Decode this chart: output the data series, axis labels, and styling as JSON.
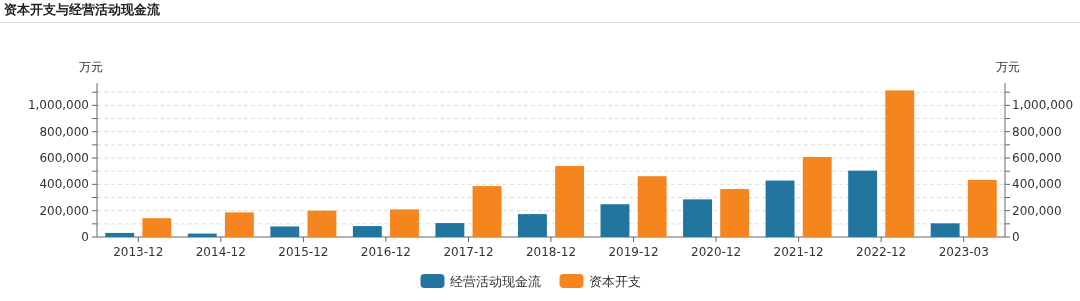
{
  "chart_data": {
    "type": "bar",
    "title": "资本开支与经营活动现金流",
    "ylabel": "万元",
    "y2label": "万元",
    "categories": [
      "2013-12",
      "2014-12",
      "2015-12",
      "2016-12",
      "2017-12",
      "2018-12",
      "2019-12",
      "2020-12",
      "2021-12",
      "2022-12",
      "2023-03"
    ],
    "series": [
      {
        "name": "经营活动现金流",
        "color": "#21759f",
        "values": [
          31000,
          26000,
          80000,
          83000,
          106000,
          174000,
          249000,
          286000,
          429000,
          504000,
          104000
        ]
      },
      {
        "name": "资本开支",
        "color": "#f5861f",
        "values": [
          143000,
          187000,
          200000,
          210000,
          387000,
          540000,
          462000,
          364000,
          608000,
          1114000,
          434000
        ]
      }
    ],
    "ylim": [
      0,
      1170000
    ],
    "yticks": [
      {
        "value": 0,
        "label": "0"
      },
      {
        "value": 100000,
        "label": null
      },
      {
        "value": 200000,
        "label": "200,000"
      },
      {
        "value": 300000,
        "label": null
      },
      {
        "value": 400000,
        "label": "400,000"
      },
      {
        "value": 500000,
        "label": null
      },
      {
        "value": 600000,
        "label": "600,000"
      },
      {
        "value": 700000,
        "label": null
      },
      {
        "value": 800000,
        "label": "800,000"
      },
      {
        "value": 900000,
        "label": null
      },
      {
        "value": 1000000,
        "label": "1,000,000"
      },
      {
        "value": 1100000,
        "label": null
      }
    ],
    "y2lim": [
      0,
      1170000
    ],
    "y2ticks": [
      {
        "value": 0,
        "label": "0"
      },
      {
        "value": 100000,
        "label": null
      },
      {
        "value": 200000,
        "label": "200,000"
      },
      {
        "value": 300000,
        "label": null
      },
      {
        "value": 400000,
        "label": "400,000"
      },
      {
        "value": 500000,
        "label": null
      },
      {
        "value": 600000,
        "label": "600,000"
      },
      {
        "value": 700000,
        "label": null
      },
      {
        "value": 800000,
        "label": "800,000"
      },
      {
        "value": 900000,
        "label": null
      },
      {
        "value": 1000000,
        "label": "1,000,000"
      },
      {
        "value": 1100000,
        "label": null
      }
    ],
    "grid": "y",
    "legend": "bottom"
  }
}
